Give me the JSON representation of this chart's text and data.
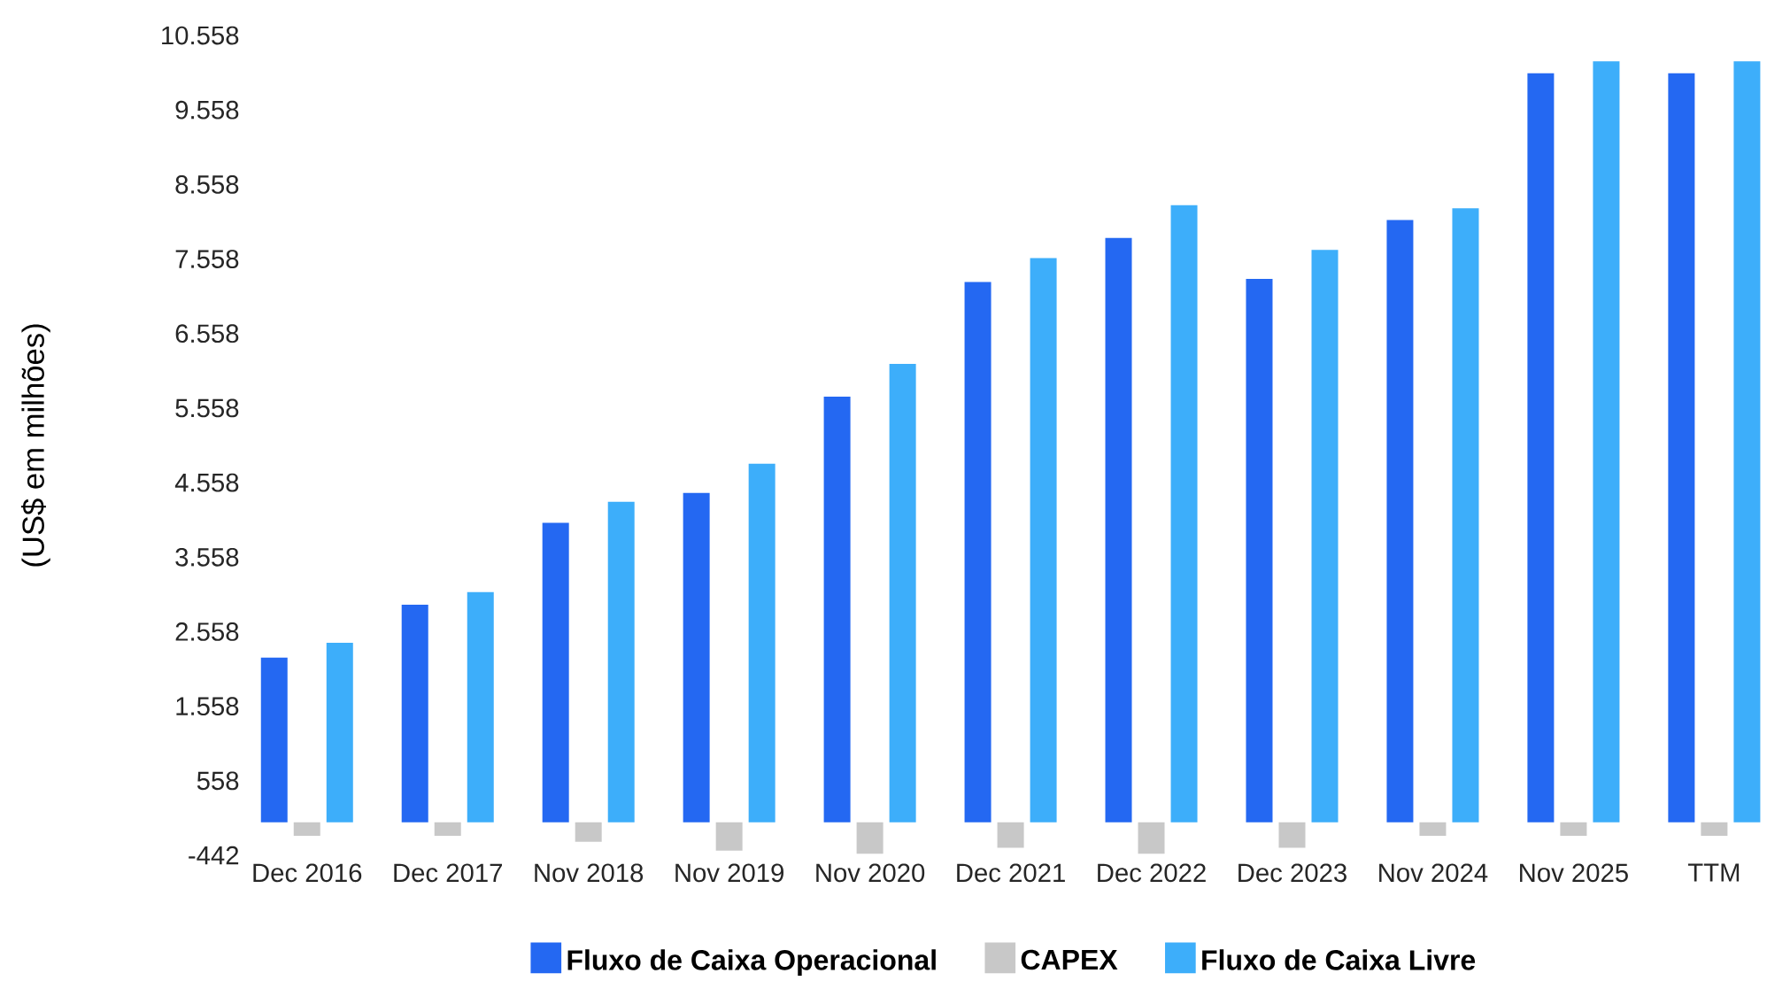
{
  "chart_data": {
    "type": "bar",
    "ylabel": "(US$ em milhões)",
    "categories": [
      "Dec 2016",
      "Dec 2017",
      "Nov 2018",
      "Nov 2019",
      "Nov 2020",
      "Dec 2021",
      "Dec 2022",
      "Dec 2023",
      "Nov 2024",
      "Nov 2025",
      "TTM"
    ],
    "series": [
      {
        "name": "Fluxo de Caixa Operacional",
        "color": "#2468f2",
        "values": [
          2210,
          2920,
          4020,
          4420,
          5710,
          7250,
          7840,
          7290,
          8080,
          10050,
          10050
        ]
      },
      {
        "name": "CAPEX",
        "color": "#c8c8c8",
        "values": [
          -180,
          -180,
          -260,
          -380,
          -420,
          -340,
          -420,
          -340,
          -180,
          -180,
          -180
        ]
      },
      {
        "name": "Fluxo de Caixa Livre",
        "color": "#3daefa",
        "values": [
          2410,
          3090,
          4300,
          4810,
          6150,
          7570,
          8280,
          7680,
          8240,
          10210,
          10210
        ]
      }
    ],
    "ylim": [
      -442,
      10558
    ],
    "yticks": [
      -442,
      558,
      {
        "value": 1558,
        "label": "1.558"
      },
      {
        "value": 2558,
        "label": "2.558"
      },
      {
        "value": 3558,
        "label": "3.558"
      },
      {
        "value": 4558,
        "label": "4.558"
      },
      {
        "value": 5558,
        "label": "5.558"
      },
      {
        "value": 6558,
        "label": "6.558"
      },
      {
        "value": 7558,
        "label": "7.558"
      },
      {
        "value": 8558,
        "label": "8.558"
      },
      {
        "value": 9558,
        "label": "9.558"
      },
      {
        "value": 10558,
        "label": "10.558"
      }
    ],
    "grid": false,
    "legend": "bottom"
  }
}
